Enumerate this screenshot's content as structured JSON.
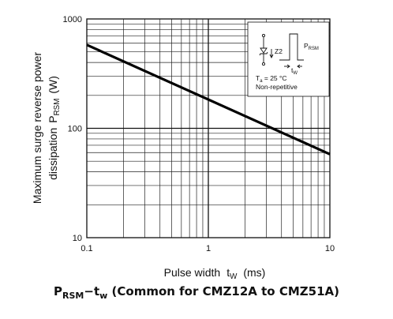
{
  "chart_data": {
    "type": "line",
    "x_scale": "log",
    "y_scale": "log",
    "xlim": [
      0.1,
      10
    ],
    "ylim": [
      10,
      1000
    ],
    "x_ticks": [
      "0.1",
      "1",
      "10"
    ],
    "y_ticks": [
      "10",
      "100",
      "1000"
    ],
    "xlabel": "Pulse width",
    "xlabel_symbol": "t",
    "xlabel_symbol_sub": "W",
    "xlabel_unit": "(ms)",
    "ylabel_line1": "Maximum surge reverse power",
    "ylabel_line2_prefix": "dissipation",
    "ylabel_symbol": "P",
    "ylabel_symbol_sub": "RSM",
    "ylabel_unit": "(W)",
    "grid": true,
    "series": [
      {
        "x": [
          0.1,
          10
        ],
        "y": [
          580,
          58
        ]
      }
    ],
    "legend": {
      "placement": "top-right",
      "pulse_label": "P",
      "pulse_label_sub": "RSM",
      "width_label": "t",
      "width_label_sub": "W",
      "condition_prefix": "T",
      "condition_sub": "a",
      "condition_value": " = 25 °C",
      "note": "Non-repetitive"
    },
    "caption": {
      "p": "P",
      "p_sub": "RSM",
      "dash": "−t",
      "t_sub": "w",
      "rest": " (Common for CMZ12A to CMZ51A)"
    }
  }
}
